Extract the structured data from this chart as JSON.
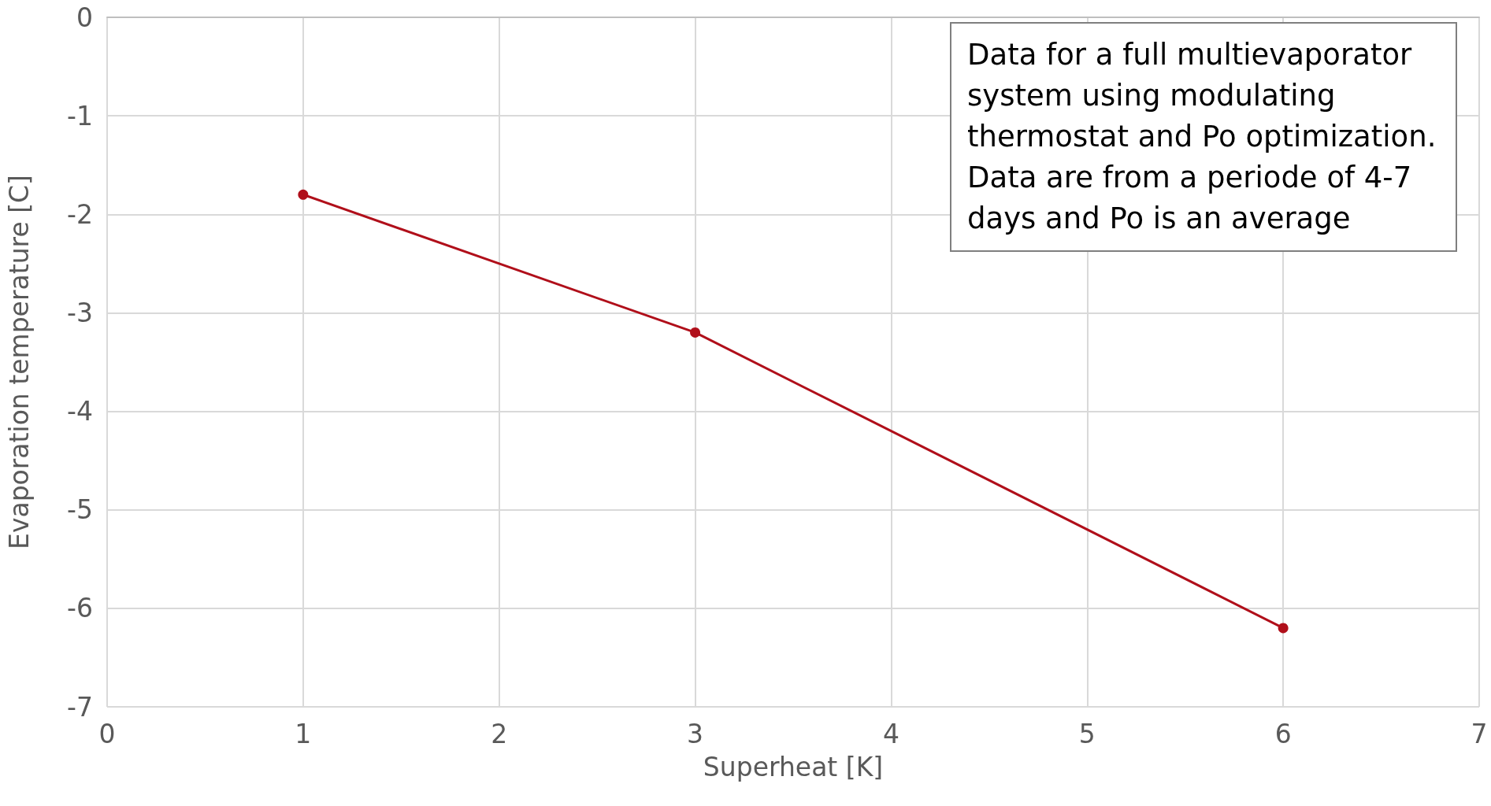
{
  "chart_data": {
    "type": "line",
    "xlabel": "Superheat [K]",
    "ylabel": "Evaporation temperature [C]",
    "x": [
      1,
      3,
      6
    ],
    "series": [
      {
        "color": "#b00f1a",
        "values": [
          -1.8,
          -3.2,
          -6.2
        ]
      }
    ],
    "xlim": [
      0,
      7
    ],
    "xticks": [
      0,
      1,
      2,
      3,
      4,
      5,
      6,
      7
    ],
    "ylim": [
      -7,
      0
    ],
    "yticks": [
      -7,
      -6,
      -5,
      -4,
      -3,
      -2,
      -1,
      0
    ],
    "grid": true,
    "marker": "circle",
    "line_style": "solid",
    "annotations": [
      "Data for a full multievaporator system using modulating thermostat and Po optimization. Data are from a periode of 4-7 days and Po is an average"
    ]
  }
}
